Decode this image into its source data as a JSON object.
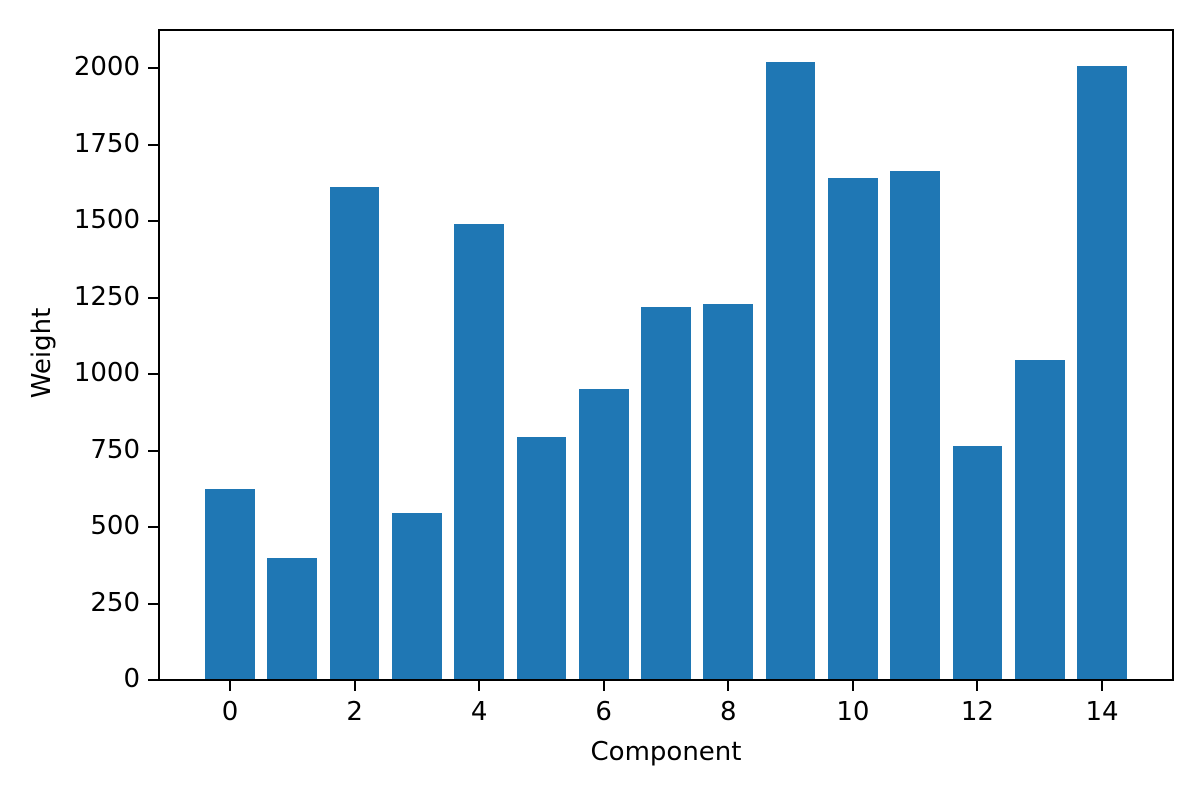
{
  "chart_data": {
    "type": "bar",
    "title": "",
    "xlabel": "Component",
    "ylabel": "Weight",
    "categories": [
      0,
      1,
      2,
      3,
      4,
      5,
      6,
      7,
      8,
      9,
      10,
      11,
      12,
      13,
      14
    ],
    "values": [
      625,
      400,
      1610,
      545,
      1490,
      795,
      950,
      1220,
      1230,
      2020,
      1640,
      1665,
      765,
      1045,
      2005
    ],
    "bar_color": "#1f77b4",
    "bar_width": 0.8,
    "xticks": [
      0,
      2,
      4,
      6,
      8,
      10,
      12,
      14
    ],
    "yticks": [
      0,
      250,
      500,
      750,
      1000,
      1250,
      1500,
      1750,
      2000
    ],
    "xlim": [
      -1.14,
      15.14
    ],
    "ylim": [
      0,
      2124
    ],
    "grid": false,
    "legend_position": "none",
    "background_color": "#ffffff",
    "axis_color": "#000000"
  }
}
